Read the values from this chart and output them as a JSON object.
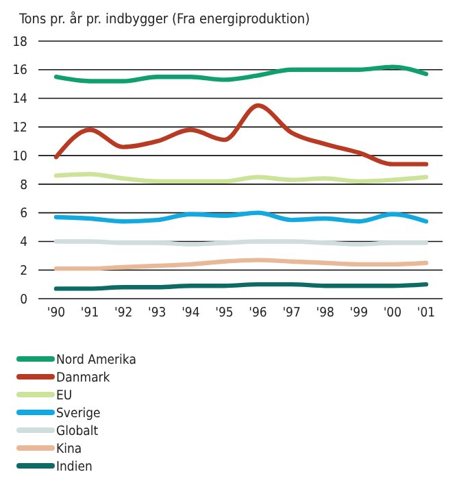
{
  "chart_data": {
    "type": "line",
    "title": "Tons pr. år pr. indbygger (Fra energiproduktion)",
    "categories": [
      "'90",
      "'91",
      "'92",
      "'93",
      "'94",
      "'95",
      "'96",
      "'97",
      "'98",
      "'99",
      "'00",
      "'01"
    ],
    "series": [
      {
        "name": "Nord Amerika",
        "color": "#0fa06e",
        "values": [
          15.5,
          15.2,
          15.2,
          15.5,
          15.5,
          15.3,
          15.6,
          16.0,
          16.0,
          16.0,
          16.2,
          15.7
        ]
      },
      {
        "name": "Danmark",
        "color": "#b83a22",
        "values": [
          9.9,
          11.8,
          10.6,
          11.0,
          11.8,
          11.1,
          13.5,
          11.6,
          10.8,
          10.2,
          9.4,
          9.4
        ]
      },
      {
        "name": "EU",
        "color": "#cde39a",
        "values": [
          8.6,
          8.7,
          8.4,
          8.2,
          8.2,
          8.2,
          8.5,
          8.3,
          8.4,
          8.2,
          8.3,
          8.5
        ]
      },
      {
        "name": "Sverige",
        "color": "#12a8e0",
        "values": [
          5.7,
          5.6,
          5.4,
          5.5,
          5.9,
          5.8,
          6.0,
          5.5,
          5.6,
          5.4,
          5.9,
          5.4
        ]
      },
      {
        "name": "Globalt",
        "color": "#cfdddd",
        "values": [
          4.0,
          4.0,
          3.9,
          3.9,
          3.8,
          3.9,
          4.0,
          4.0,
          3.9,
          3.8,
          3.9,
          3.9
        ]
      },
      {
        "name": "Kina",
        "color": "#e8b898",
        "values": [
          2.1,
          2.1,
          2.2,
          2.3,
          2.4,
          2.6,
          2.7,
          2.6,
          2.5,
          2.4,
          2.4,
          2.5
        ]
      },
      {
        "name": "Indien",
        "color": "#0e6b63",
        "values": [
          0.7,
          0.7,
          0.8,
          0.8,
          0.9,
          0.9,
          1.0,
          1.0,
          0.9,
          0.9,
          0.9,
          1.0
        ]
      }
    ],
    "ylim": [
      0,
      18
    ],
    "yticks": [
      0,
      2,
      4,
      6,
      8,
      10,
      12,
      14,
      16,
      18
    ],
    "grid": "y",
    "legend": "bottom",
    "line_style": "solid"
  }
}
